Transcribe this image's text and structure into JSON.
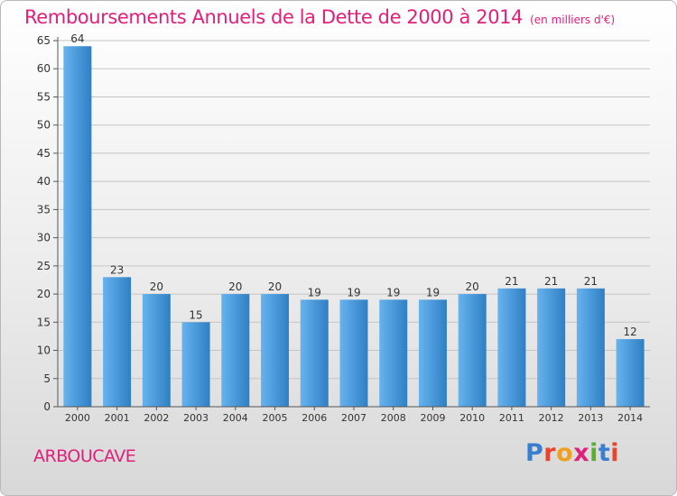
{
  "title": "Remboursements Annuels de la Dette de 2000 à 2014",
  "unit": "(en milliers d'€)",
  "place": "ARBOUCAVE",
  "logo": {
    "text": "Proxiti",
    "letters": [
      {
        "char": "P",
        "color": "#3a7ecf"
      },
      {
        "char": "r",
        "color": "#e8452c"
      },
      {
        "char": "o",
        "color": "#f0a020"
      },
      {
        "char": "x",
        "color": "#e0207a"
      },
      {
        "char": "i",
        "color": "#58b030"
      },
      {
        "char": "t",
        "color": "#3a7ecf"
      },
      {
        "char": "i",
        "color": "#e8452c"
      }
    ]
  },
  "colors": {
    "accent": "#e0207a",
    "bar_light": "#66b3ef",
    "bar_dark": "#2f7fc4",
    "grid": "#c4c4c4"
  },
  "chart_data": {
    "type": "bar",
    "title": "Remboursements Annuels de la Dette de 2000 à 2014",
    "xlabel": "",
    "ylabel": "",
    "categories": [
      "2000",
      "2001",
      "2002",
      "2003",
      "2004",
      "2005",
      "2006",
      "2007",
      "2008",
      "2009",
      "2010",
      "2011",
      "2012",
      "2013",
      "2014"
    ],
    "values": [
      64,
      23,
      20,
      15,
      20,
      20,
      19,
      19,
      19,
      19,
      20,
      21,
      21,
      21,
      12
    ],
    "ylim": [
      0,
      65
    ],
    "yticks": [
      0,
      5,
      10,
      15,
      20,
      25,
      30,
      35,
      40,
      45,
      50,
      55,
      60,
      65
    ],
    "grid": true,
    "data_labels": true,
    "legend": "none"
  }
}
